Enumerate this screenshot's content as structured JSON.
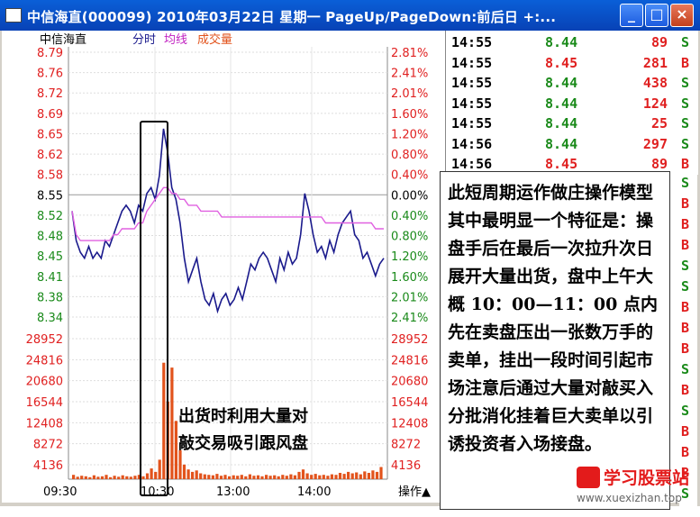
{
  "window": {
    "title": "中信海直(000099) 2010年03月22日 星期一 PageUp/PageDown:前后日 +:...",
    "buttons": [
      "_",
      "□",
      "×"
    ]
  },
  "chart_header": {
    "name": "中信海直",
    "mode": "分时",
    "avg": "均线",
    "vol": "成交量"
  },
  "left_axis": [
    "8.79",
    "8.76",
    "8.72",
    "8.69",
    "8.65",
    "8.62",
    "8.58",
    "8.55",
    "8.52",
    "8.48",
    "8.45",
    "8.41",
    "8.38",
    "8.34"
  ],
  "right_axis": [
    "2.81%",
    "2.41%",
    "2.01%",
    "1.60%",
    "1.20%",
    "0.80%",
    "0.40%",
    "0.00%",
    "0.40%",
    "0.80%",
    "1.20%",
    "1.60%",
    "2.01%",
    "2.41%"
  ],
  "vol_axis": [
    "28952",
    "24816",
    "20680",
    "16544",
    "12408",
    "8272",
    "4136"
  ],
  "time_axis": [
    "09:30",
    "10:30",
    "13:00",
    "14:00"
  ],
  "operate_label": "操作▲",
  "ticks": [
    {
      "time": "14:55",
      "price": "8.44",
      "vol": "89",
      "side": "S"
    },
    {
      "time": "14:55",
      "price": "8.45",
      "vol": "281",
      "side": "B"
    },
    {
      "time": "14:55",
      "price": "8.44",
      "vol": "438",
      "side": "S"
    },
    {
      "time": "14:55",
      "price": "8.44",
      "vol": "124",
      "side": "S"
    },
    {
      "time": "14:55",
      "price": "8.44",
      "vol": "25",
      "side": "S"
    },
    {
      "time": "14:56",
      "price": "8.44",
      "vol": "297",
      "side": "S"
    },
    {
      "time": "14:56",
      "price": "8.45",
      "vol": "89",
      "side": "B"
    }
  ],
  "side_column": [
    "S",
    "B",
    "B",
    "B",
    "S",
    "S",
    "B",
    "B",
    "B",
    "S",
    "B",
    "S",
    "B",
    "B",
    "B",
    "S"
  ],
  "annotation": "此短周期运作做庄操作模型其中最明显一个特征是：操盘手后在最后一次拉升次日展开大量出货，盘中上午大概 10：00—11：00 点内先在卖盘压出一张数万手的卖单，挂出一段时间引起市场注意后通过大量对敲买入分批消化挂着巨大卖单以引诱投资者入场接盘。",
  "volume_annotation": "出货时利用大量对\n敲交易吸引跟风盘",
  "watermark": {
    "name": "学习股票站",
    "url": "www.xuexizhan.top"
  },
  "colors": {
    "price_line": "#1a1a8c",
    "avg_line": "#e060e0",
    "volume": "#e2531c",
    "up": "#e02020",
    "down": "#1a8a1a"
  },
  "chart_data": {
    "type": "line",
    "title": "中信海直 分时",
    "prev_close": 8.55,
    "ylim": [
      8.34,
      8.79
    ],
    "series": [
      {
        "name": "分时",
        "values": [
          8.52,
          8.47,
          8.45,
          8.44,
          8.46,
          8.44,
          8.45,
          8.44,
          8.47,
          8.46,
          8.48,
          8.5,
          8.52,
          8.53,
          8.52,
          8.5,
          8.53,
          8.52,
          8.55,
          8.56,
          8.54,
          8.58,
          8.66,
          8.62,
          8.56,
          8.54,
          8.5,
          8.44,
          8.4,
          8.42,
          8.44,
          8.4,
          8.37,
          8.36,
          8.38,
          8.35,
          8.37,
          8.38,
          8.36,
          8.37,
          8.39,
          8.37,
          8.4,
          8.43,
          8.42,
          8.44,
          8.45,
          8.44,
          8.42,
          8.4,
          8.44,
          8.42,
          8.45,
          8.43,
          8.44,
          8.48,
          8.55,
          8.52,
          8.48,
          8.45,
          8.46,
          8.44,
          8.47,
          8.45,
          8.48,
          8.5,
          8.51,
          8.52,
          8.48,
          8.47,
          8.44,
          8.45,
          8.43,
          8.41,
          8.43,
          8.44
        ]
      },
      {
        "name": "均线",
        "values": [
          8.52,
          8.48,
          8.47,
          8.47,
          8.47,
          8.47,
          8.47,
          8.47,
          8.47,
          8.47,
          8.48,
          8.48,
          8.49,
          8.49,
          8.49,
          8.49,
          8.5,
          8.5,
          8.52,
          8.53,
          8.54,
          8.55,
          8.56,
          8.56,
          8.55,
          8.55,
          8.54,
          8.54,
          8.53,
          8.53,
          8.53,
          8.52,
          8.52,
          8.52,
          8.52,
          8.52,
          8.51,
          8.51,
          8.51,
          8.51,
          8.51,
          8.51,
          8.51,
          8.51,
          8.51,
          8.51,
          8.51,
          8.51,
          8.51,
          8.51,
          8.51,
          8.51,
          8.51,
          8.51,
          8.51,
          8.51,
          8.51,
          8.51,
          8.51,
          8.51,
          8.51,
          8.5,
          8.5,
          8.5,
          8.5,
          8.5,
          8.5,
          8.5,
          8.5,
          8.5,
          8.5,
          8.5,
          8.5,
          8.49,
          8.49,
          8.49
        ]
      }
    ],
    "volume": [
      900,
      500,
      700,
      600,
      400,
      800,
      500,
      600,
      900,
      400,
      700,
      500,
      800,
      600,
      500,
      700,
      900,
      600,
      1200,
      2200,
      1500,
      4000,
      24000,
      16000,
      23000,
      12000,
      6000,
      3000,
      2000,
      1500,
      1800,
      1200,
      1000,
      900,
      800,
      1100,
      700,
      900,
      600,
      800,
      700,
      900,
      600,
      1000,
      700,
      800,
      600,
      900,
      700,
      800,
      600,
      900,
      700,
      1000,
      800,
      1500,
      2000,
      1200,
      900,
      1100,
      800,
      900,
      700,
      1000,
      900,
      1300,
      1100,
      1500,
      1200,
      1400,
      1000,
      1600,
      1300,
      1800,
      1500,
      2500
    ],
    "vol_ylim": [
      0,
      28952
    ]
  }
}
